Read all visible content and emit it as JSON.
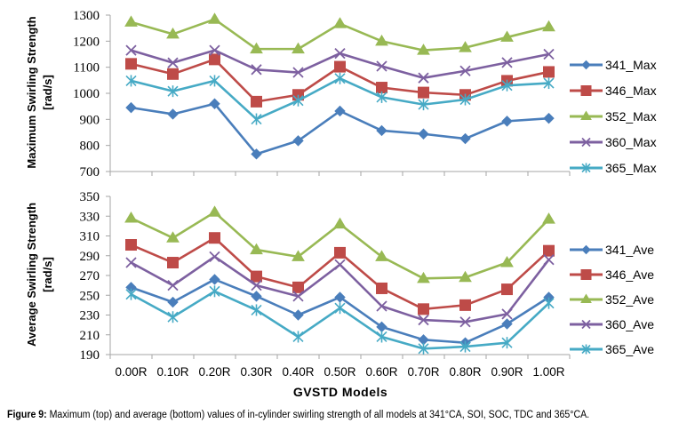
{
  "caption": {
    "label": "Figure 9:",
    "text": " Maximum (top) and average (bottom) values of in-cylinder swirling strength of all models at 341°CA, SOI, SOC, TDC and 365°CA."
  },
  "colors": {
    "341": "#4a7ebb",
    "346": "#be4b48",
    "352": "#98b954",
    "360": "#7d60a0",
    "365": "#46aac5"
  },
  "chart_data": [
    {
      "type": "line",
      "title": "",
      "xlabel": "",
      "ylabel_lines": [
        "Maximum Swirling Strength",
        "[rad/s]"
      ],
      "ylim": [
        700,
        1300
      ],
      "yticks": [
        700,
        800,
        900,
        1000,
        1100,
        1200,
        1300
      ],
      "categories": [
        "0.00R",
        "0.10R",
        "0.20R",
        "0.30R",
        "0.40R",
        "0.50R",
        "0.60R",
        "0.70R",
        "0.80R",
        "0.90R",
        "1.00R"
      ],
      "grid": false,
      "legend_position": "right",
      "series": [
        {
          "name": "341_Max",
          "key": "341",
          "marker": "diamond",
          "values": [
            945,
            920,
            960,
            767,
            818,
            932,
            857,
            844,
            826,
            893,
            904
          ]
        },
        {
          "name": "346_Max",
          "key": "346",
          "marker": "square",
          "values": [
            1113,
            1074,
            1130,
            968,
            994,
            1102,
            1022,
            1003,
            994,
            1048,
            1082
          ]
        },
        {
          "name": "352_Max",
          "key": "352",
          "marker": "triangle",
          "values": [
            1273,
            1227,
            1284,
            1170,
            1170,
            1267,
            1200,
            1165,
            1175,
            1215,
            1255
          ]
        },
        {
          "name": "360_Max",
          "key": "360",
          "marker": "x",
          "values": [
            1165,
            1117,
            1165,
            1091,
            1080,
            1153,
            1104,
            1059,
            1086,
            1118,
            1150
          ]
        },
        {
          "name": "365_Max",
          "key": "365",
          "marker": "star",
          "values": [
            1048,
            1008,
            1048,
            901,
            972,
            1057,
            985,
            957,
            976,
            1030,
            1039
          ]
        }
      ]
    },
    {
      "type": "line",
      "title": "",
      "xlabel": "GVSTD Models",
      "ylabel_lines": [
        "Average Swirling Strength",
        "[rad/s]"
      ],
      "ylim": [
        190,
        350
      ],
      "yticks": [
        190,
        210,
        230,
        250,
        270,
        290,
        310,
        330,
        350
      ],
      "categories": [
        "0.00R",
        "0.10R",
        "0.20R",
        "0.30R",
        "0.40R",
        "0.50R",
        "0.60R",
        "0.70R",
        "0.80R",
        "0.90R",
        "1.00R"
      ],
      "grid": false,
      "legend_position": "right",
      "series": [
        {
          "name": "341_Ave",
          "key": "341",
          "marker": "diamond",
          "values": [
            258,
            243,
            266,
            249,
            230,
            248,
            218,
            205,
            202,
            221,
            248
          ]
        },
        {
          "name": "346_Ave",
          "key": "346",
          "marker": "square",
          "values": [
            301,
            283,
            308,
            269,
            258,
            293,
            257,
            236,
            240,
            256,
            295
          ]
        },
        {
          "name": "352_Ave",
          "key": "352",
          "marker": "triangle",
          "values": [
            328,
            308,
            334,
            296,
            289,
            322,
            289,
            267,
            268,
            283,
            327
          ]
        },
        {
          "name": "360_Ave",
          "key": "360",
          "marker": "x",
          "values": [
            283,
            260,
            289,
            260,
            249,
            281,
            239,
            225,
            223,
            231,
            286
          ]
        },
        {
          "name": "365_Ave",
          "key": "365",
          "marker": "star",
          "values": [
            251,
            228,
            254,
            235,
            208,
            237,
            208,
            196,
            198,
            202,
            242
          ]
        }
      ]
    }
  ]
}
